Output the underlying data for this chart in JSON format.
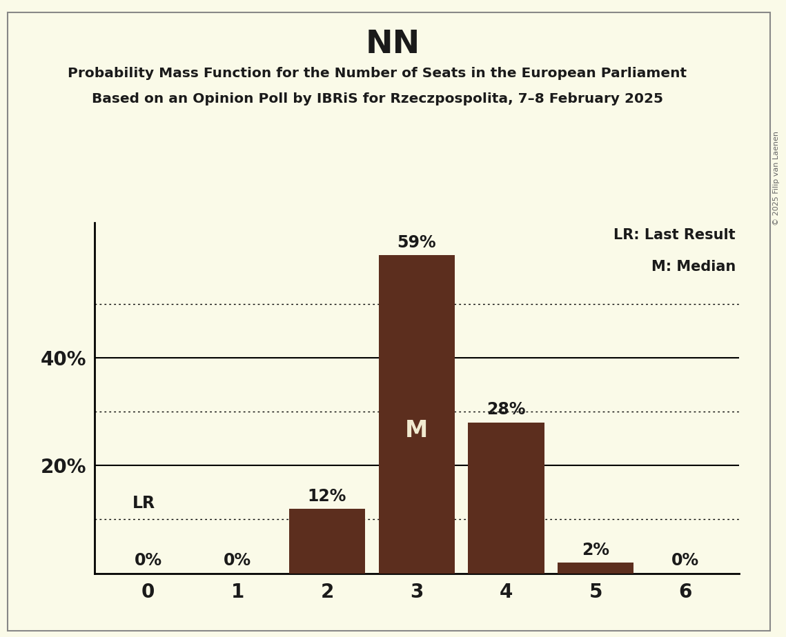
{
  "title": "NN",
  "subtitle1": "Probability Mass Function for the Number of Seats in the European Parliament",
  "subtitle2": "Based on an Opinion Poll by IBRiS for Rzeczpospolita, 7–8 February 2025",
  "copyright": "© 2025 Filip van Laenen",
  "categories": [
    0,
    1,
    2,
    3,
    4,
    5,
    6
  ],
  "values": [
    0,
    0,
    12,
    59,
    28,
    2,
    0
  ],
  "bar_color": "#5c2e1e",
  "background_color": "#fafae8",
  "text_color": "#1a1a1a",
  "dotted_lines": [
    10,
    30,
    50
  ],
  "solid_lines": [
    20,
    40
  ],
  "ylim": [
    0,
    65
  ],
  "median_bar": 3,
  "lr_bar": 0,
  "legend_lr": "LR: Last Result",
  "legend_m": "M: Median",
  "bar_labels": [
    "0%",
    "0%",
    "12%",
    "59%",
    "28%",
    "2%",
    "0%"
  ]
}
